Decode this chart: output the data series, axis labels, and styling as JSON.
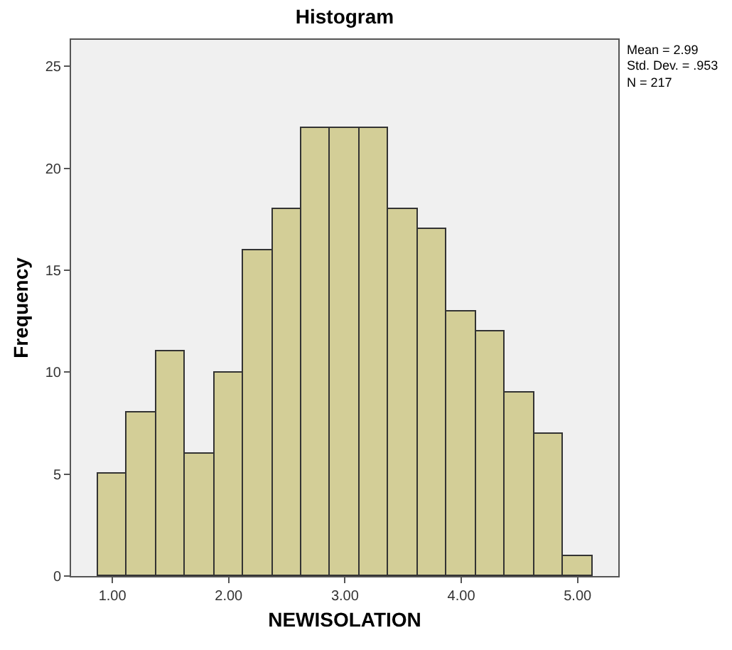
{
  "chart_data": {
    "type": "histogram",
    "title": "Histogram",
    "xlabel": "NEWISOLATION",
    "ylabel": "Frequency",
    "bins": [
      0.875,
      1.125,
      1.375,
      1.625,
      1.875,
      2.125,
      2.375,
      2.625,
      2.875,
      3.125,
      3.375,
      3.625,
      3.875,
      4.125,
      4.375,
      4.625,
      4.875,
      5.125
    ],
    "values": [
      5,
      8,
      11,
      6,
      10,
      16,
      18,
      22,
      22,
      22,
      18,
      17,
      13,
      12,
      9,
      7,
      1
    ],
    "color": "#d3ce97",
    "xlim": [
      0.645,
      5.35
    ],
    "xticks": [
      {
        "value": 1,
        "label": "1.00"
      },
      {
        "value": 2,
        "label": "2.00"
      },
      {
        "value": 3,
        "label": "3.00"
      },
      {
        "value": 4,
        "label": "4.00"
      },
      {
        "value": 5,
        "label": "5.00"
      }
    ],
    "ylim": [
      0,
      26.3
    ],
    "yticks": [
      0,
      5,
      10,
      15,
      20,
      25
    ],
    "annotations": [
      "Mean = 2.99",
      "Std. Dev. = .953",
      "N = 217"
    ],
    "grid": false
  }
}
